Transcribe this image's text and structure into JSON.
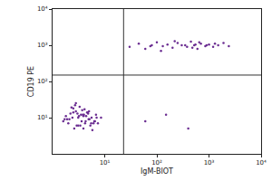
{
  "chart_data": {
    "type": "scatter",
    "x_label": "IgM-BIOT",
    "y_label": "CD19 PE",
    "log": true,
    "color": "#6a2c91",
    "marker": "dot",
    "xlim": [
      1,
      10000
    ],
    "ylim": [
      1,
      10000
    ],
    "xticks": [
      {
        "value": 10,
        "label": "10¹"
      },
      {
        "value": 100,
        "label": "10²"
      },
      {
        "value": 1000,
        "label": "10³"
      },
      {
        "value": 10000,
        "label": "10⁴"
      }
    ],
    "yticks": [
      {
        "value": 10,
        "label": "10¹"
      },
      {
        "value": 100,
        "label": "10²"
      },
      {
        "value": 1000,
        "label": "10³"
      },
      {
        "value": 10000,
        "label": "10⁴"
      }
    ],
    "quadrant": {
      "x": 23,
      "y": 150
    },
    "x": [
      2.1,
      3.5,
      4.2,
      2.8,
      5.6,
      3.1,
      1.8,
      6.3,
      4.7,
      2.5,
      3.9,
      5.1,
      2.2,
      7.4,
      3.3,
      4.4,
      1.6,
      2.9,
      6.8,
      3.7,
      4.9,
      2.4,
      5.8,
      3.0,
      2.0,
      4.1,
      3.6,
      8.5,
      2.7,
      5.3,
      3.2,
      4.6,
      1.9,
      6.1,
      3.8,
      2.6,
      5.0,
      4.3,
      2.3,
      7.0,
      3.4,
      4.8,
      1.7,
      3.9,
      5.5,
      2.8,
      6.5,
      4.0,
      3.1,
      2.5,
      30,
      45,
      60,
      80,
      100,
      130,
      160,
      200,
      250,
      300,
      380,
      450,
      520,
      600,
      700,
      850,
      1000,
      1200,
      1500,
      1900,
      2400,
      120,
      220,
      350,
      480,
      650,
      900,
      1300,
      75,
      550,
      60,
      150,
      400
    ],
    "values": [
      9,
      12,
      7,
      15,
      10,
      6,
      11,
      8,
      14,
      18,
      5,
      9,
      13,
      7,
      20,
      11,
      8,
      6,
      12,
      16,
      9,
      10,
      4.5,
      13,
      7,
      17,
      8,
      10,
      22,
      6,
      11,
      14,
      9,
      7,
      12,
      5,
      15,
      8,
      19,
      10,
      6,
      13,
      9,
      11,
      7,
      25,
      8,
      12,
      10,
      14,
      900,
      1100,
      800,
      1000,
      1200,
      950,
      1050,
      850,
      1150,
      1000,
      900,
      1250,
      1000,
      800,
      1100,
      950,
      1050,
      900,
      1000,
      1150,
      950,
      700,
      1300,
      1000,
      850,
      1200,
      1000,
      1100,
      950,
      1050,
      8,
      12,
      5
    ]
  }
}
